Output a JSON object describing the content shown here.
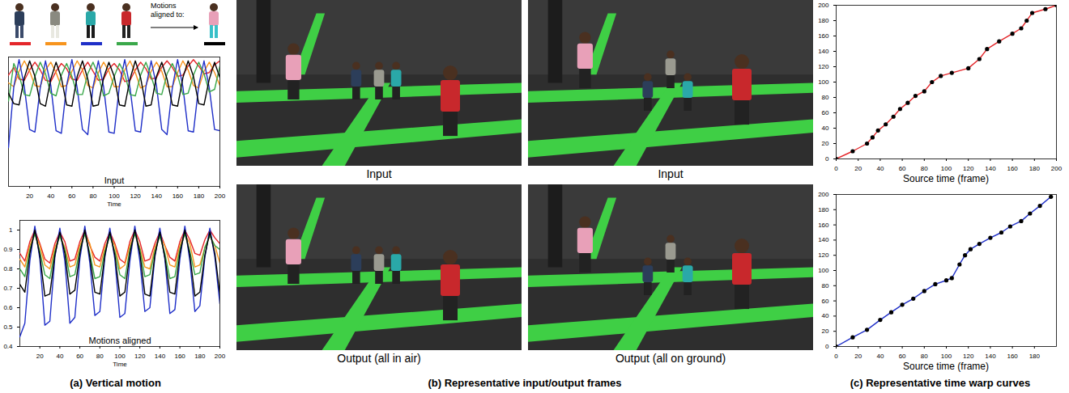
{
  "chart_data": [
    {
      "type": "line",
      "title": "Input",
      "xlabel": "Time",
      "x": [
        0,
        5,
        10,
        15,
        20,
        25,
        30,
        35,
        40,
        45,
        50,
        55,
        60,
        65,
        70,
        75,
        80,
        85,
        90,
        95,
        100,
        105,
        110,
        115,
        120,
        125,
        130,
        135,
        140,
        145,
        150,
        155,
        160,
        165,
        170,
        175,
        180,
        185,
        190,
        195,
        200
      ],
      "xlim": [
        0,
        200
      ],
      "xticks": [
        20,
        40,
        60,
        80,
        100,
        120,
        140,
        160,
        180,
        200
      ],
      "ylim": [
        0,
        1
      ],
      "tick_labels": "x",
      "series": [
        {
          "color": "#e4262a",
          "values": [
            0.86,
            0.92,
            0.83,
            0.82,
            0.9,
            0.96,
            0.9,
            0.82,
            0.81,
            0.89,
            0.95,
            0.91,
            0.83,
            0.82,
            0.9,
            0.96,
            0.89,
            0.82,
            0.83,
            0.91,
            0.95,
            0.9,
            0.81,
            0.82,
            0.9,
            0.96,
            0.91,
            0.83,
            0.84,
            0.92,
            0.97,
            0.92,
            0.85,
            0.86,
            0.93,
            0.98,
            0.93,
            0.87,
            0.88,
            0.94,
            0.97
          ]
        },
        {
          "color": "#f7941d",
          "values": [
            0.8,
            0.77,
            0.89,
            0.97,
            0.89,
            0.78,
            0.77,
            0.9,
            0.96,
            0.88,
            0.77,
            0.78,
            0.89,
            0.97,
            0.9,
            0.78,
            0.76,
            0.88,
            0.96,
            0.89,
            0.77,
            0.77,
            0.9,
            0.97,
            0.88,
            0.76,
            0.78,
            0.89,
            0.96,
            0.89,
            0.77,
            0.77,
            0.88,
            0.97,
            0.9,
            0.78,
            0.76,
            0.89,
            0.96,
            0.88,
            0.78
          ]
        },
        {
          "color": "#1f2fc8",
          "values": [
            0.3,
            0.77,
            0.98,
            0.77,
            0.44,
            0.42,
            0.76,
            0.97,
            0.78,
            0.43,
            0.41,
            0.78,
            0.98,
            0.76,
            0.44,
            0.4,
            0.77,
            0.97,
            0.77,
            0.42,
            0.41,
            0.78,
            0.98,
            0.76,
            0.43,
            0.42,
            0.77,
            0.97,
            0.78,
            0.44,
            0.4,
            0.76,
            0.98,
            0.77,
            0.43,
            0.42,
            0.78,
            0.97,
            0.76,
            0.44,
            0.43
          ]
        },
        {
          "color": "#3aa84a",
          "values": [
            0.66,
            0.95,
            0.86,
            0.71,
            0.7,
            0.85,
            0.96,
            0.87,
            0.72,
            0.7,
            0.86,
            0.95,
            0.85,
            0.71,
            0.71,
            0.87,
            0.96,
            0.86,
            0.7,
            0.72,
            0.85,
            0.95,
            0.87,
            0.71,
            0.7,
            0.86,
            0.96,
            0.85,
            0.72,
            0.71,
            0.87,
            0.95,
            0.86,
            0.71,
            0.72,
            0.86,
            0.96,
            0.87,
            0.73,
            0.75,
            0.93
          ]
        },
        {
          "color": "#000000",
          "values": [
            0.72,
            0.64,
            0.63,
            0.84,
            0.97,
            0.85,
            0.64,
            0.62,
            0.83,
            0.96,
            0.84,
            0.63,
            0.62,
            0.85,
            0.97,
            0.83,
            0.62,
            0.63,
            0.84,
            0.96,
            0.85,
            0.63,
            0.62,
            0.83,
            0.97,
            0.84,
            0.62,
            0.63,
            0.85,
            0.96,
            0.83,
            0.63,
            0.62,
            0.84,
            0.97,
            0.85,
            0.64,
            0.63,
            0.83,
            0.96,
            0.84
          ]
        }
      ]
    },
    {
      "type": "line",
      "title": "Motions aligned",
      "xlabel": "Time",
      "x": [
        0,
        5,
        10,
        15,
        20,
        25,
        30,
        35,
        40,
        45,
        50,
        55,
        60,
        65,
        70,
        75,
        80,
        85,
        90,
        95,
        100,
        105,
        110,
        115,
        120,
        125,
        130,
        135,
        140,
        145,
        150,
        155,
        160,
        165,
        170,
        175,
        180,
        185,
        190,
        195,
        200
      ],
      "xlim": [
        0,
        200
      ],
      "xticks": [
        20,
        40,
        60,
        80,
        100,
        120,
        140,
        160,
        180,
        200
      ],
      "ylim": [
        0.4,
        1.05
      ],
      "yticks": [
        0.4,
        0.5,
        0.6,
        0.7,
        0.8,
        0.9,
        1
      ],
      "series": [
        {
          "color": "#e4262a",
          "values": [
            0.88,
            0.84,
            0.94,
            1.0,
            0.93,
            0.85,
            0.83,
            0.93,
            0.99,
            0.94,
            0.84,
            0.85,
            0.94,
            1.0,
            0.92,
            0.86,
            0.84,
            0.93,
            0.99,
            0.93,
            0.85,
            0.83,
            0.94,
            1.0,
            0.94,
            0.84,
            0.85,
            0.93,
            0.99,
            0.92,
            0.86,
            0.84,
            0.94,
            1.0,
            0.95,
            0.88,
            0.87,
            0.95,
            1.0,
            0.96,
            0.93
          ]
        },
        {
          "color": "#f7941d",
          "values": [
            0.85,
            0.81,
            0.92,
            0.98,
            0.92,
            0.82,
            0.8,
            0.91,
            0.97,
            0.91,
            0.81,
            0.82,
            0.92,
            0.98,
            0.93,
            0.82,
            0.81,
            0.91,
            0.97,
            0.92,
            0.8,
            0.82,
            0.92,
            0.98,
            0.91,
            0.81,
            0.8,
            0.91,
            0.97,
            0.92,
            0.82,
            0.81,
            0.92,
            0.98,
            0.93,
            0.81,
            0.82,
            0.91,
            0.97,
            0.92,
            0.83
          ]
        },
        {
          "color": "#1f2fc8",
          "values": [
            0.45,
            0.52,
            0.84,
            1.02,
            0.85,
            0.51,
            0.53,
            0.86,
            1.01,
            0.84,
            0.52,
            0.55,
            0.85,
            1.02,
            0.83,
            0.56,
            0.58,
            0.86,
            1.01,
            0.85,
            0.55,
            0.57,
            0.84,
            1.02,
            0.84,
            0.58,
            0.6,
            0.86,
            1.01,
            0.85,
            0.57,
            0.59,
            0.85,
            1.02,
            0.84,
            0.58,
            0.61,
            0.86,
            1.01,
            0.86,
            0.62
          ]
        },
        {
          "color": "#3aa84a",
          "values": [
            0.8,
            0.76,
            0.9,
            0.98,
            0.89,
            0.77,
            0.75,
            0.89,
            0.97,
            0.9,
            0.76,
            0.77,
            0.9,
            0.98,
            0.88,
            0.75,
            0.76,
            0.89,
            0.97,
            0.89,
            0.77,
            0.75,
            0.9,
            0.98,
            0.9,
            0.76,
            0.77,
            0.89,
            0.97,
            0.88,
            0.75,
            0.76,
            0.9,
            0.98,
            0.89,
            0.77,
            0.78,
            0.91,
            0.97,
            0.92,
            0.9
          ]
        },
        {
          "color": "#000000",
          "values": [
            0.72,
            0.68,
            0.88,
            1.0,
            0.87,
            0.66,
            0.67,
            0.87,
            0.99,
            0.88,
            0.67,
            0.69,
            0.88,
            1.0,
            0.86,
            0.68,
            0.67,
            0.87,
            0.99,
            0.87,
            0.66,
            0.68,
            0.88,
            1.0,
            0.88,
            0.67,
            0.66,
            0.87,
            0.99,
            0.86,
            0.68,
            0.67,
            0.88,
            1.0,
            0.87,
            0.66,
            0.68,
            0.87,
            0.99,
            0.88,
            0.67
          ]
        }
      ]
    },
    {
      "type": "line",
      "xlabel": "Source time (frame)",
      "marker": "circle",
      "color": "#e4262a",
      "x": [
        0,
        15,
        28,
        33,
        38,
        45,
        52,
        58,
        65,
        72,
        80,
        87,
        95,
        105,
        120,
        130,
        137,
        148,
        160,
        168,
        173,
        178,
        190,
        200
      ],
      "values": [
        0,
        10,
        20,
        28,
        37,
        45,
        55,
        65,
        73,
        82,
        88,
        100,
        108,
        112,
        118,
        130,
        143,
        153,
        163,
        170,
        180,
        190,
        195,
        200
      ],
      "xlim": [
        0,
        200
      ],
      "xticks": [
        0,
        20,
        40,
        60,
        80,
        100,
        120,
        140,
        160,
        180,
        200
      ],
      "ylim": [
        0,
        200
      ],
      "yticks": [
        0,
        20,
        40,
        60,
        80,
        100,
        120,
        140,
        160,
        180,
        200
      ]
    },
    {
      "type": "line",
      "xlabel": "Source time (frame)",
      "marker": "circle",
      "color": "#1f2fc8",
      "x": [
        0,
        15,
        28,
        40,
        50,
        60,
        70,
        80,
        90,
        100,
        105,
        112,
        117,
        122,
        130,
        140,
        150,
        158,
        168,
        176,
        185,
        195
      ],
      "values": [
        0,
        12,
        22,
        35,
        45,
        55,
        63,
        73,
        82,
        87,
        90,
        108,
        120,
        128,
        135,
        143,
        150,
        158,
        165,
        175,
        185,
        197
      ],
      "xlim": [
        0,
        200
      ],
      "xticks": [
        0,
        20,
        40,
        60,
        80,
        100,
        120,
        140,
        160,
        180
      ],
      "ylim": [
        0,
        200
      ],
      "yticks": [
        0,
        20,
        40,
        60,
        80,
        100,
        120,
        140,
        160,
        180,
        200
      ]
    }
  ],
  "panel_a": {
    "caption": "(a) Vertical motion",
    "annotation": "Motions aligned to:"
  },
  "panel_b": {
    "caption": "(b) Representative input/output frames",
    "frames": [
      "Input",
      "Input",
      "Output (all in air)",
      "Output (all on ground)"
    ]
  },
  "panel_c": {
    "caption": "(c) Representative time warp curves"
  }
}
